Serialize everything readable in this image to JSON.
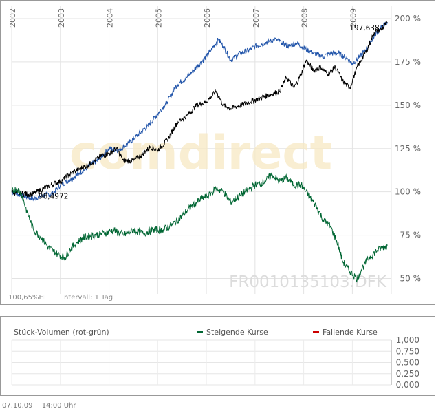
{
  "chart_data": [
    {
      "type": "line",
      "title": "",
      "xlabel": "",
      "ylabel": "",
      "x_ticks": [
        "2002",
        "2003",
        "2004",
        "2005",
        "2006",
        "2007",
        "2008",
        "2009"
      ],
      "y_ticks": [
        "50 %",
        "75 %",
        "100 %",
        "125 %",
        "150 %",
        "175 %",
        "200 %"
      ],
      "ylim": [
        42,
        207
      ],
      "series": [
        {
          "color": "#2255aa",
          "points": [
            [
              2002.0,
              100
            ],
            [
              2002.2,
              98
            ],
            [
              2002.45,
              96
            ],
            [
              2002.65,
              98
            ],
            [
              2002.85,
              99
            ],
            [
              2003.0,
              104
            ],
            [
              2003.2,
              107
            ],
            [
              2003.4,
              111
            ],
            [
              2003.6,
              115
            ],
            [
              2003.8,
              119
            ],
            [
              2004.0,
              125
            ],
            [
              2004.2,
              124
            ],
            [
              2004.4,
              128
            ],
            [
              2004.6,
              133
            ],
            [
              2004.8,
              138
            ],
            [
              2005.0,
              145
            ],
            [
              2005.2,
              152
            ],
            [
              2005.4,
              162
            ],
            [
              2005.6,
              166
            ],
            [
              2005.8,
              172
            ],
            [
              2006.0,
              178
            ],
            [
              2006.1,
              182
            ],
            [
              2006.25,
              188
            ],
            [
              2006.35,
              184
            ],
            [
              2006.5,
              176
            ],
            [
              2006.7,
              180
            ],
            [
              2006.9,
              182
            ],
            [
              2007.0,
              184
            ],
            [
              2007.2,
              186
            ],
            [
              2007.4,
              188
            ],
            [
              2007.55,
              186
            ],
            [
              2007.7,
              184
            ],
            [
              2007.85,
              186
            ],
            [
              2008.0,
              183
            ],
            [
              2008.2,
              180
            ],
            [
              2008.4,
              178
            ],
            [
              2008.55,
              180
            ],
            [
              2008.7,
              180
            ],
            [
              2008.9,
              177
            ],
            [
              2009.0,
              174
            ],
            [
              2009.15,
              178
            ],
            [
              2009.3,
              183
            ],
            [
              2009.45,
              190
            ],
            [
              2009.6,
              195
            ],
            [
              2009.72,
              198
            ]
          ]
        },
        {
          "color": "#000000",
          "points": [
            [
              2002.0,
              100
            ],
            [
              2002.2,
              99
            ],
            [
              2002.4,
              98.5
            ],
            [
              2002.6,
              101
            ],
            [
              2002.8,
              104
            ],
            [
              2003.0,
              106
            ],
            [
              2003.3,
              112
            ],
            [
              2003.6,
              116
            ],
            [
              2003.85,
              121
            ],
            [
              2004.0,
              122
            ],
            [
              2004.15,
              125
            ],
            [
              2004.3,
              118
            ],
            [
              2004.5,
              118
            ],
            [
              2004.7,
              122
            ],
            [
              2004.85,
              126
            ],
            [
              2005.0,
              124
            ],
            [
              2005.2,
              130
            ],
            [
              2005.4,
              140
            ],
            [
              2005.6,
              144
            ],
            [
              2005.8,
              150
            ],
            [
              2006.0,
              152
            ],
            [
              2006.2,
              158
            ],
            [
              2006.35,
              150
            ],
            [
              2006.5,
              148
            ],
            [
              2006.7,
              150
            ],
            [
              2006.9,
              152
            ],
            [
              2007.1,
              154
            ],
            [
              2007.3,
              156
            ],
            [
              2007.5,
              158
            ],
            [
              2007.65,
              166
            ],
            [
              2007.8,
              160
            ],
            [
              2007.95,
              168
            ],
            [
              2008.05,
              176
            ],
            [
              2008.2,
              170
            ],
            [
              2008.35,
              172
            ],
            [
              2008.5,
              168
            ],
            [
              2008.65,
              172
            ],
            [
              2008.8,
              164
            ],
            [
              2008.95,
              160
            ],
            [
              2009.1,
              172
            ],
            [
              2009.3,
              182
            ],
            [
              2009.45,
              192
            ],
            [
              2009.6,
              194
            ],
            [
              2009.72,
              197.6387
            ]
          ]
        },
        {
          "color": "#006633",
          "points": [
            [
              2002.0,
              100
            ],
            [
              2002.1,
              102
            ],
            [
              2002.2,
              99
            ],
            [
              2002.32,
              88
            ],
            [
              2002.45,
              78
            ],
            [
              2002.6,
              74
            ],
            [
              2002.75,
              68
            ],
            [
              2002.95,
              64
            ],
            [
              2003.1,
              62
            ],
            [
              2003.2,
              67
            ],
            [
              2003.35,
              71
            ],
            [
              2003.5,
              74
            ],
            [
              2003.7,
              75
            ],
            [
              2003.9,
              76
            ],
            [
              2004.1,
              78
            ],
            [
              2004.3,
              75
            ],
            [
              2004.5,
              78
            ],
            [
              2004.7,
              76
            ],
            [
              2004.9,
              78
            ],
            [
              2005.1,
              78
            ],
            [
              2005.3,
              81
            ],
            [
              2005.5,
              86
            ],
            [
              2005.7,
              92
            ],
            [
              2005.9,
              96
            ],
            [
              2006.05,
              98
            ],
            [
              2006.2,
              102
            ],
            [
              2006.35,
              100
            ],
            [
              2006.5,
              94
            ],
            [
              2006.7,
              98
            ],
            [
              2006.9,
              102
            ],
            [
              2007.0,
              104
            ],
            [
              2007.2,
              106
            ],
            [
              2007.35,
              110
            ],
            [
              2007.5,
              106
            ],
            [
              2007.65,
              108
            ],
            [
              2007.8,
              104
            ],
            [
              2007.95,
              104
            ],
            [
              2008.1,
              98
            ],
            [
              2008.25,
              92
            ],
            [
              2008.4,
              84
            ],
            [
              2008.55,
              80
            ],
            [
              2008.7,
              70
            ],
            [
              2008.8,
              60
            ],
            [
              2008.95,
              54
            ],
            [
              2009.1,
              50
            ],
            [
              2009.2,
              56
            ],
            [
              2009.35,
              62
            ],
            [
              2009.5,
              66
            ],
            [
              2009.62,
              68
            ],
            [
              2009.72,
              69
            ]
          ]
        }
      ],
      "annotations": [
        {
          "label": "98,4972",
          "x": 2002.55,
          "y": 98.4972
        },
        {
          "label": "197,6387",
          "x": 2009.72,
          "y": 197.6387
        }
      ],
      "watermark": "comdirect",
      "isin_label": "FR0010135103.DFK",
      "bottom_info": {
        "left": "100,65%HL",
        "interval": "Intervall: 1 Tag"
      },
      "grid": true
    },
    {
      "type": "bar",
      "title": "Stück-Volumen (rot-grün)",
      "legend": [
        {
          "label": "Steigende Kurse",
          "color": "#006633"
        },
        {
          "label": "Fallende Kurse",
          "color": "#cc0000"
        }
      ],
      "y_ticks": [
        "1,000",
        "0,750",
        "0,500",
        "0,250",
        "0,000"
      ],
      "ylim": [
        0,
        1
      ],
      "values": []
    }
  ],
  "footer": {
    "date": "07.10.09",
    "time": "14:00 Uhr"
  }
}
